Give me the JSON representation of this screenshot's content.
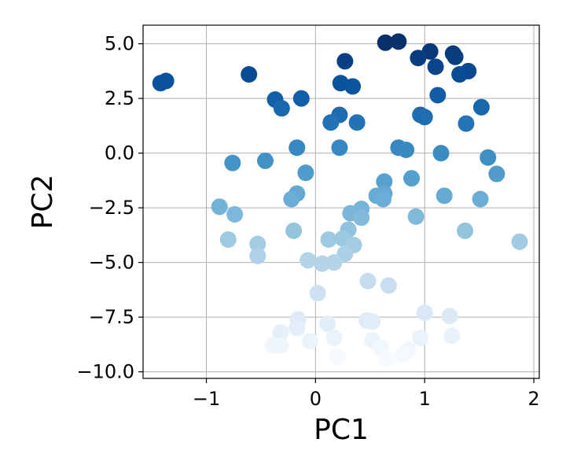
{
  "chart_data": {
    "type": "scatter",
    "xlabel": "PC1",
    "ylabel": "PC2",
    "xlim": [
      -1.58,
      2.05
    ],
    "ylim": [
      -10.3,
      5.85
    ],
    "grid": true,
    "x_ticks": [
      -1,
      0,
      1,
      2
    ],
    "x_tick_labels": [
      "−1",
      "0",
      "1",
      "2"
    ],
    "y_ticks": [
      5.0,
      2.5,
      0.0,
      -2.5,
      -5.0,
      -7.5,
      -10.0
    ],
    "y_tick_labels": [
      "5.0",
      "2.5",
      "0.0",
      "−2.5",
      "−5.0",
      "−7.5",
      "−10.0"
    ],
    "colormap": "Blues",
    "color_low": "#f7fbff",
    "color_high": "#08306b",
    "points": [
      {
        "x": 0.64,
        "y": 5.05
      },
      {
        "x": 0.76,
        "y": 5.1
      },
      {
        "x": 1.05,
        "y": 4.65
      },
      {
        "x": 0.94,
        "y": 4.35
      },
      {
        "x": 1.26,
        "y": 4.55
      },
      {
        "x": 1.28,
        "y": 4.4
      },
      {
        "x": 1.1,
        "y": 3.95
      },
      {
        "x": 1.4,
        "y": 3.75
      },
      {
        "x": 1.32,
        "y": 3.6
      },
      {
        "x": -1.37,
        "y": 3.3
      },
      {
        "x": -1.42,
        "y": 3.2
      },
      {
        "x": -0.61,
        "y": 3.6
      },
      {
        "x": 0.27,
        "y": 4.2
      },
      {
        "x": 0.23,
        "y": 3.2
      },
      {
        "x": 0.34,
        "y": 3.05
      },
      {
        "x": -0.37,
        "y": 2.45
      },
      {
        "x": -0.13,
        "y": 2.5
      },
      {
        "x": -0.31,
        "y": 2.05
      },
      {
        "x": 1.12,
        "y": 2.65
      },
      {
        "x": 1.52,
        "y": 2.1
      },
      {
        "x": 0.22,
        "y": 1.75
      },
      {
        "x": 0.14,
        "y": 1.4
      },
      {
        "x": 0.38,
        "y": 1.4
      },
      {
        "x": 0.96,
        "y": 1.75
      },
      {
        "x": 1.0,
        "y": 1.65
      },
      {
        "x": 1.38,
        "y": 1.35
      },
      {
        "x": 0.76,
        "y": 0.25
      },
      {
        "x": 0.83,
        "y": 0.15
      },
      {
        "x": 1.15,
        "y": 0.0
      },
      {
        "x": 1.58,
        "y": -0.2
      },
      {
        "x": 1.66,
        "y": -0.95
      },
      {
        "x": 0.22,
        "y": 0.25
      },
      {
        "x": -0.17,
        "y": 0.25
      },
      {
        "x": -0.76,
        "y": -0.45
      },
      {
        "x": -0.46,
        "y": -0.35
      },
      {
        "x": -0.09,
        "y": -0.9
      },
      {
        "x": 0.88,
        "y": -1.15
      },
      {
        "x": 0.63,
        "y": -1.3
      },
      {
        "x": 0.56,
        "y": -1.95
      },
      {
        "x": 0.63,
        "y": -1.85
      },
      {
        "x": 0.62,
        "y": -2.1
      },
      {
        "x": 1.18,
        "y": -1.95
      },
      {
        "x": 1.51,
        "y": -2.1
      },
      {
        "x": -0.17,
        "y": -1.85
      },
      {
        "x": -0.22,
        "y": -2.1
      },
      {
        "x": -0.88,
        "y": -2.45
      },
      {
        "x": -0.74,
        "y": -2.8
      },
      {
        "x": 0.32,
        "y": -2.75
      },
      {
        "x": 0.42,
        "y": -2.55
      },
      {
        "x": 0.42,
        "y": -2.95
      },
      {
        "x": 0.92,
        "y": -2.9
      },
      {
        "x": -0.2,
        "y": -3.55
      },
      {
        "x": -0.8,
        "y": -3.95
      },
      {
        "x": -0.53,
        "y": -4.15
      },
      {
        "x": -0.53,
        "y": -4.7
      },
      {
        "x": 0.12,
        "y": -3.95
      },
      {
        "x": 0.3,
        "y": -3.5
      },
      {
        "x": 0.25,
        "y": -3.9
      },
      {
        "x": 0.35,
        "y": -4.2
      },
      {
        "x": 0.27,
        "y": -4.6
      },
      {
        "x": 1.37,
        "y": -3.55
      },
      {
        "x": 1.87,
        "y": -4.05
      },
      {
        "x": -0.07,
        "y": -4.9
      },
      {
        "x": 0.06,
        "y": -5.05
      },
      {
        "x": 0.17,
        "y": -5.0
      },
      {
        "x": 0.48,
        "y": -5.85
      },
      {
        "x": 0.67,
        "y": -6.05
      },
      {
        "x": 0.02,
        "y": -6.4
      },
      {
        "x": -0.16,
        "y": -7.6
      },
      {
        "x": -0.17,
        "y": -8.0
      },
      {
        "x": -0.32,
        "y": -8.2
      },
      {
        "x": 0.11,
        "y": -7.8
      },
      {
        "x": 0.47,
        "y": -7.65
      },
      {
        "x": 0.52,
        "y": -7.7
      },
      {
        "x": 1.0,
        "y": -7.3
      },
      {
        "x": 1.23,
        "y": -7.45
      },
      {
        "x": -0.39,
        "y": -8.8
      },
      {
        "x": -0.32,
        "y": -8.8
      },
      {
        "x": -0.05,
        "y": -8.6
      },
      {
        "x": 0.17,
        "y": -8.45
      },
      {
        "x": 0.52,
        "y": -8.55
      },
      {
        "x": 0.6,
        "y": -8.9
      },
      {
        "x": 0.85,
        "y": -9.0
      },
      {
        "x": 0.96,
        "y": -8.45
      },
      {
        "x": 1.25,
        "y": -8.35
      },
      {
        "x": 0.8,
        "y": -9.2
      },
      {
        "x": 0.65,
        "y": -9.4
      },
      {
        "x": 0.2,
        "y": -9.3
      }
    ]
  }
}
